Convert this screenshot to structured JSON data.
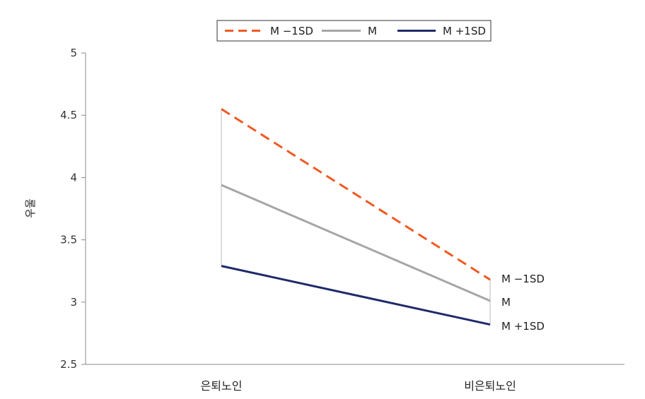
{
  "chart_data": {
    "type": "line",
    "categories": [
      "은퇴노인",
      "비은퇴노인"
    ],
    "series": [
      {
        "name": "M −1SD",
        "values": [
          4.55,
          3.18
        ],
        "color": "#f05a23",
        "dash": "dashed"
      },
      {
        "name": "M",
        "values": [
          3.94,
          3.01
        ],
        "color": "#a6a6a6",
        "dash": "solid"
      },
      {
        "name": "M +1SD",
        "values": [
          3.29,
          2.82
        ],
        "color": "#1f2a6b",
        "dash": "solid"
      }
    ],
    "ylabel": "우울",
    "xlabel": "",
    "ylim": [
      2.5,
      5
    ],
    "yticks": [
      "2.5",
      "3",
      "3.5",
      "4",
      "4.5",
      "5"
    ],
    "ytick_values": [
      2.5,
      3,
      3.5,
      4,
      4.5,
      5
    ],
    "legend_position": "top-center",
    "grid": false
  }
}
